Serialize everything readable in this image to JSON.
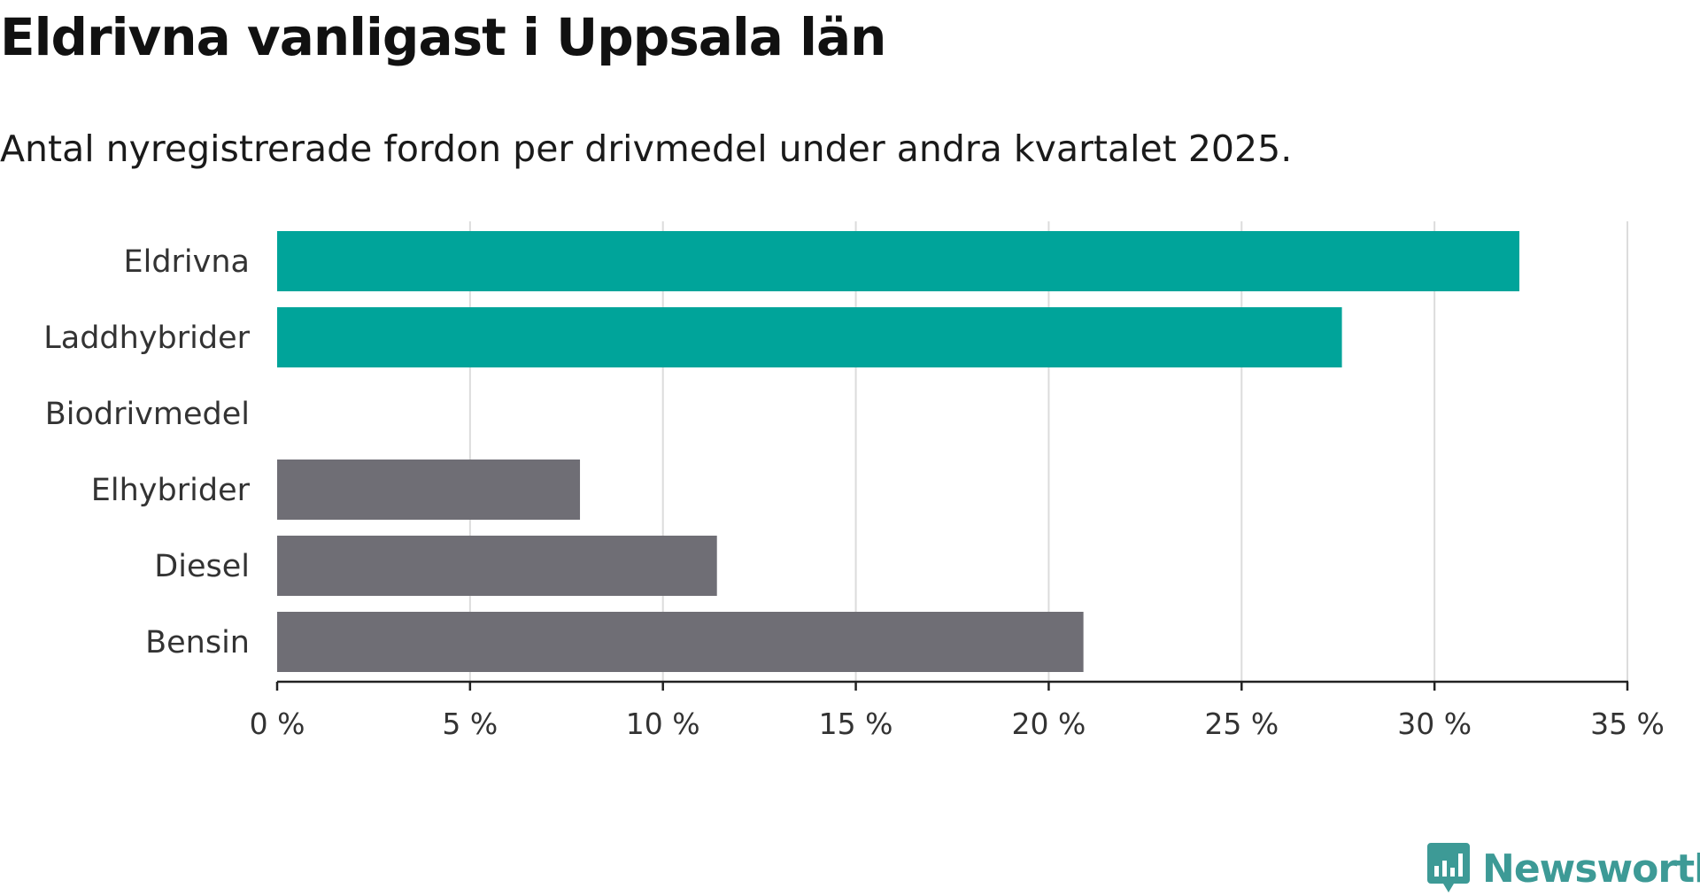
{
  "chart_data": {
    "type": "bar",
    "orientation": "horizontal",
    "title": "Eldrivna vanligast i Uppsala län",
    "subtitle": "Antal nyregistrerade fordon per drivmedel under andra kvartalet 2025.",
    "categories": [
      "Eldrivna",
      "Laddhybrider",
      "Biodrivmedel",
      "Elhybrider",
      "Diesel",
      "Bensin"
    ],
    "values": [
      32.2,
      27.6,
      0,
      7.85,
      11.4,
      20.9
    ],
    "unit": "%",
    "xlim": [
      0,
      35
    ],
    "xticks": [
      0,
      5,
      10,
      15,
      20,
      25,
      30,
      35
    ],
    "xtick_labels": [
      "0 %",
      "5 %",
      "10 %",
      "15 %",
      "20 %",
      "25 %",
      "30 %",
      "35 %"
    ],
    "xlabel": "",
    "ylabel": "",
    "grid": "vertical",
    "bar_colors": [
      "#00a49a",
      "#00a49a",
      "#00a49a",
      "#6f6e75",
      "#6f6e75",
      "#6f6e75"
    ]
  },
  "brand": {
    "name": "Newsworthy",
    "color": "#3d9a96",
    "icon": "newsworthy-logo-icon"
  }
}
